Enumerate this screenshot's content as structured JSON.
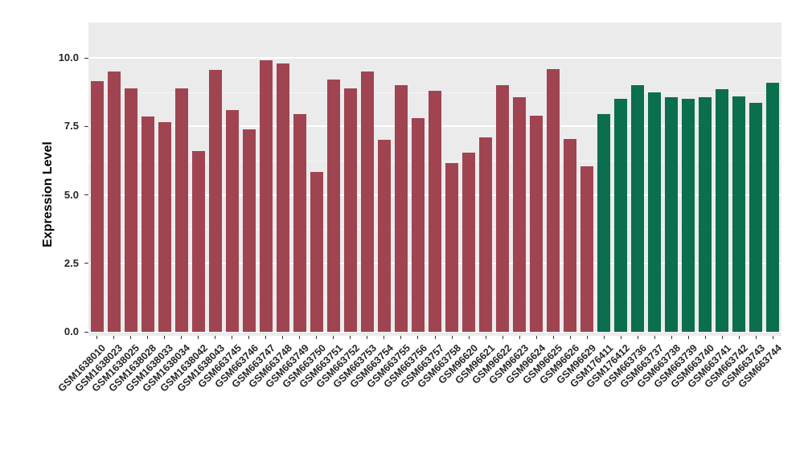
{
  "chart_data": {
    "type": "bar",
    "title": "",
    "xlabel": "",
    "ylabel": "Expression Level",
    "ylim": [
      0,
      11.3
    ],
    "grid": true,
    "legend": "none",
    "panel_background": "#EBEBEB",
    "yticks": [
      {
        "value": 0,
        "label": "0.0"
      },
      {
        "value": 2.5,
        "label": "2.5"
      },
      {
        "value": 5,
        "label": "5.0"
      },
      {
        "value": 7.5,
        "label": "7.5"
      },
      {
        "value": 10,
        "label": "10.0"
      }
    ],
    "minor_ticks": [
      1.25,
      3.75,
      6.25,
      8.75
    ],
    "categories": [
      "GSM1638010",
      "GSM1638023",
      "GSM1638025",
      "GSM1638028",
      "GSM1638033",
      "GSM1638034",
      "GSM1638042",
      "GSM1638043",
      "GSM663745",
      "GSM663746",
      "GSM663747",
      "GSM663748",
      "GSM663749",
      "GSM663750",
      "GSM663751",
      "GSM663752",
      "GSM663753",
      "GSM663754",
      "GSM663755",
      "GSM663756",
      "GSM663757",
      "GSM663758",
      "GSM96620",
      "GSM96621",
      "GSM96622",
      "GSM96623",
      "GSM96624",
      "GSM96625",
      "GSM96626",
      "GSM96629",
      "GSM176411",
      "GSM176412",
      "GSM663736",
      "GSM663737",
      "GSM663738",
      "GSM663739",
      "GSM663740",
      "GSM663741",
      "GSM663742",
      "GSM663743",
      "GSM663744"
    ],
    "values": [
      9.15,
      9.5,
      8.9,
      7.85,
      7.65,
      8.9,
      6.6,
      9.55,
      8.1,
      7.4,
      9.9,
      9.8,
      7.95,
      5.85,
      9.2,
      8.9,
      9.5,
      7.0,
      9.0,
      7.8,
      8.8,
      6.15,
      6.55,
      7.1,
      9.0,
      8.55,
      7.9,
      9.6,
      7.05,
      6.05,
      7.95,
      8.5,
      9.0,
      8.75,
      8.55,
      8.5,
      8.55,
      8.85,
      8.6,
      8.35,
      9.1
    ],
    "groups": [
      "group1",
      "group1",
      "group1",
      "group1",
      "group1",
      "group1",
      "group1",
      "group1",
      "group1",
      "group1",
      "group1",
      "group1",
      "group1",
      "group1",
      "group1",
      "group1",
      "group1",
      "group1",
      "group1",
      "group1",
      "group1",
      "group1",
      "group1",
      "group1",
      "group1",
      "group1",
      "group1",
      "group1",
      "group1",
      "group1",
      "group2",
      "group2",
      "group2",
      "group2",
      "group2",
      "group2",
      "group2",
      "group2",
      "group2",
      "group2",
      "group2"
    ],
    "group_colors": {
      "group1": "#A04452",
      "group2": "#0B6E4E"
    }
  }
}
